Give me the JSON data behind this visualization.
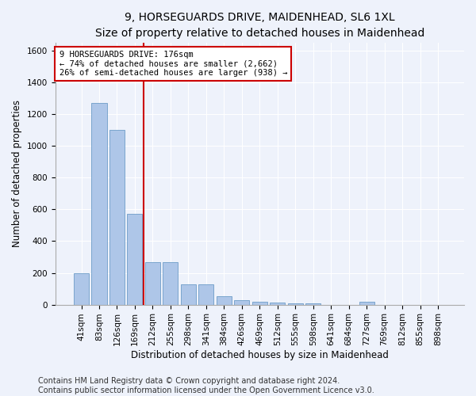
{
  "title": "9, HORSEGUARDS DRIVE, MAIDENHEAD, SL6 1XL",
  "subtitle": "Size of property relative to detached houses in Maidenhead",
  "xlabel": "Distribution of detached houses by size in Maidenhead",
  "ylabel": "Number of detached properties",
  "categories": [
    "41sqm",
    "83sqm",
    "126sqm",
    "169sqm",
    "212sqm",
    "255sqm",
    "298sqm",
    "341sqm",
    "384sqm",
    "426sqm",
    "469sqm",
    "512sqm",
    "555sqm",
    "598sqm",
    "641sqm",
    "684sqm",
    "727sqm",
    "769sqm",
    "812sqm",
    "855sqm",
    "898sqm"
  ],
  "values": [
    200,
    1270,
    1100,
    570,
    265,
    265,
    130,
    130,
    55,
    30,
    20,
    12,
    10,
    10,
    0,
    0,
    20,
    0,
    0,
    0,
    0
  ],
  "bar_color": "#aec6e8",
  "bar_edge_color": "#5a8fc0",
  "vline_index": 3,
  "vline_color": "#cc0000",
  "annotation_text": "9 HORSEGUARDS DRIVE: 176sqm\n← 74% of detached houses are smaller (2,662)\n26% of semi-detached houses are larger (938) →",
  "annotation_box_color": "#ffffff",
  "annotation_box_edge": "#cc0000",
  "ylim": [
    0,
    1650
  ],
  "yticks": [
    0,
    200,
    400,
    600,
    800,
    1000,
    1200,
    1400,
    1600
  ],
  "background_color": "#eef2fb",
  "plot_bg_color": "#eef2fb",
  "footer": "Contains HM Land Registry data © Crown copyright and database right 2024.\nContains public sector information licensed under the Open Government Licence v3.0.",
  "title_fontsize": 10,
  "xlabel_fontsize": 8.5,
  "ylabel_fontsize": 8.5,
  "tick_fontsize": 7.5,
  "footer_fontsize": 7,
  "annotation_fontsize": 7.5
}
